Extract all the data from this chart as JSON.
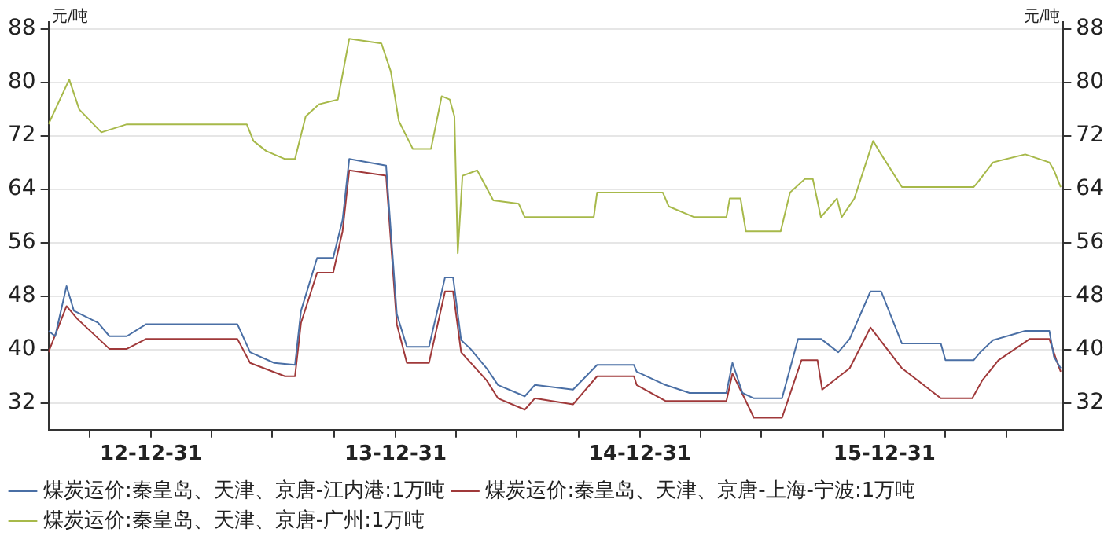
{
  "chart_data": {
    "type": "line",
    "ylabel": "元/吨",
    "y2label": "元/吨",
    "legend": "bottom",
    "grid": "y",
    "marker": "none",
    "line_style": "solid",
    "xlim": [
      "2012-07-31",
      "2016-09-23"
    ],
    "xticks": [
      {
        "value": "2012-09-30",
        "label": null
      },
      {
        "value": "2012-12-31",
        "label": "12-12-31"
      },
      {
        "value": "2013-03-31",
        "label": null
      },
      {
        "value": "2013-06-30",
        "label": null
      },
      {
        "value": "2013-09-30",
        "label": null
      },
      {
        "value": "2013-12-31",
        "label": "13-12-31"
      },
      {
        "value": "2014-03-31",
        "label": null
      },
      {
        "value": "2014-06-30",
        "label": null
      },
      {
        "value": "2014-09-30",
        "label": null
      },
      {
        "value": "2014-12-31",
        "label": "14-12-31"
      },
      {
        "value": "2015-03-31",
        "label": null
      },
      {
        "value": "2015-06-30",
        "label": null
      },
      {
        "value": "2015-09-30",
        "label": null
      },
      {
        "value": "2015-12-31",
        "label": "15-12-31"
      },
      {
        "value": "2016-03-31",
        "label": null
      },
      {
        "value": "2016-06-30",
        "label": null
      }
    ],
    "ylim": [
      28,
      89
    ],
    "yticks": [
      32,
      40,
      48,
      56,
      64,
      72,
      80,
      88
    ],
    "y2lim": [
      28,
      89
    ],
    "y2ticks": [
      32,
      40,
      48,
      56,
      64,
      72,
      80,
      88
    ],
    "series": [
      {
        "name": "煤炭运价:秦皇岛、天津、京唐-江内港:1万吨",
        "color": "#4a6fa5",
        "x": [
          "2012-07-31",
          "2012-08-10",
          "2012-08-27",
          "2012-09-07",
          "2012-10-13",
          "2012-10-30",
          "2012-11-25",
          "2012-12-24",
          "2013-05-09",
          "2013-05-28",
          "2013-07-03",
          "2013-08-03",
          "2013-08-12",
          "2013-09-05",
          "2013-09-29",
          "2013-10-13",
          "2013-10-23",
          "2013-12-17",
          "2014-01-02",
          "2014-01-17",
          "2014-02-19",
          "2014-03-15",
          "2014-03-27",
          "2014-04-08",
          "2014-04-22",
          "2014-05-16",
          "2014-06-02",
          "2014-07-12",
          "2014-07-27",
          "2014-09-22",
          "2014-10-28",
          "2014-12-22",
          "2014-12-26",
          "2015-02-07",
          "2015-03-15",
          "2015-05-09",
          "2015-05-18",
          "2015-06-02",
          "2015-06-19",
          "2015-07-31",
          "2015-08-24",
          "2015-09-27",
          "2015-10-23",
          "2015-11-09",
          "2015-12-10",
          "2015-12-26",
          "2016-01-26",
          "2016-03-24",
          "2016-03-31",
          "2016-05-12",
          "2016-05-22",
          "2016-06-10",
          "2016-07-28",
          "2016-09-02",
          "2016-09-09",
          "2016-09-19"
        ],
        "values": [
          42.8,
          42,
          49.5,
          45.8,
          44,
          42,
          42,
          43.8,
          43.8,
          39.6,
          38,
          37.7,
          45.8,
          53.7,
          53.7,
          59.4,
          68.5,
          67.5,
          45.3,
          40.4,
          40.4,
          50.8,
          50.8,
          41.4,
          40.1,
          37.2,
          34.7,
          33,
          34.7,
          34,
          37.7,
          37.7,
          36.7,
          34.7,
          33.5,
          33.5,
          38,
          33.5,
          32.7,
          32.7,
          41.6,
          41.6,
          39.6,
          41.6,
          48.7,
          48.7,
          40.9,
          40.9,
          38.4,
          38.4,
          39.6,
          41.4,
          42.8,
          42.8,
          38.9,
          37.2
        ]
      },
      {
        "name": "煤炭运价:秦皇岛、天津、京唐-上海-宁波:1万吨",
        "color": "#a0393a",
        "x": [
          "2012-07-31",
          "2012-08-27",
          "2012-09-12",
          "2012-10-30",
          "2012-11-25",
          "2012-12-24",
          "2013-05-09",
          "2013-05-28",
          "2013-07-19",
          "2013-08-03",
          "2013-08-12",
          "2013-09-05",
          "2013-09-29",
          "2013-10-13",
          "2013-10-23",
          "2013-12-17",
          "2014-01-02",
          "2014-01-17",
          "2014-02-19",
          "2014-03-15",
          "2014-03-27",
          "2014-04-08",
          "2014-05-16",
          "2014-06-02",
          "2014-07-12",
          "2014-07-27",
          "2014-09-22",
          "2014-10-28",
          "2014-12-22",
          "2014-12-26",
          "2015-02-07",
          "2015-05-09",
          "2015-05-18",
          "2015-06-07",
          "2015-06-19",
          "2015-07-31",
          "2015-08-29",
          "2015-09-22",
          "2015-09-29",
          "2015-11-09",
          "2015-12-10",
          "2016-01-26",
          "2016-03-24",
          "2016-05-10",
          "2016-05-25",
          "2016-06-18",
          "2016-08-04",
          "2016-09-02",
          "2016-09-14",
          "2016-09-19"
        ],
        "values": [
          39.6,
          46.5,
          44.6,
          40.1,
          40.1,
          41.6,
          41.6,
          38,
          36,
          36,
          44,
          51.5,
          51.5,
          57.7,
          66.8,
          66,
          43.8,
          38,
          38,
          48.7,
          48.7,
          39.6,
          35.4,
          32.7,
          31,
          32.7,
          31.8,
          36,
          36,
          34.7,
          32.3,
          32.3,
          36.4,
          32.3,
          29.8,
          29.8,
          38.4,
          38.4,
          34,
          37.2,
          43.3,
          37.2,
          32.7,
          32.7,
          35.4,
          38.4,
          41.6,
          41.6,
          38,
          36.7
        ]
      },
      {
        "name": "煤炭运价:秦皇岛、天津、京唐-广州:1万吨",
        "color": "#a7b94a",
        "x": [
          "2012-07-31",
          "2012-08-31",
          "2012-09-15",
          "2012-10-18",
          "2012-11-25",
          "2013-05-23",
          "2013-06-02",
          "2013-06-21",
          "2013-07-19",
          "2013-08-03",
          "2013-08-19",
          "2013-09-08",
          "2013-10-06",
          "2013-10-23",
          "2013-12-10",
          "2013-12-24",
          "2014-01-05",
          "2014-01-26",
          "2014-02-22",
          "2014-03-10",
          "2014-03-22",
          "2014-03-29",
          "2014-04-03",
          "2014-04-10",
          "2014-05-02",
          "2014-05-26",
          "2014-07-03",
          "2014-07-12",
          "2014-10-23",
          "2014-10-28",
          "2015-02-03",
          "2015-02-12",
          "2015-03-22",
          "2015-05-09",
          "2015-05-14",
          "2015-05-30",
          "2015-06-07",
          "2015-07-29",
          "2015-08-12",
          "2015-09-03",
          "2015-09-15",
          "2015-09-27",
          "2015-10-21",
          "2015-10-28",
          "2015-11-16",
          "2015-12-14",
          "2015-12-26",
          "2016-01-26",
          "2016-05-12",
          "2016-05-18",
          "2016-06-10",
          "2016-07-28",
          "2016-09-02",
          "2016-09-09",
          "2016-09-19"
        ],
        "values": [
          73.7,
          80.4,
          75.9,
          72.5,
          73.7,
          73.7,
          71.2,
          69.7,
          68.5,
          68.5,
          74.9,
          76.7,
          77.4,
          86.5,
          85.8,
          81.6,
          74.2,
          70,
          70,
          77.9,
          77.4,
          74.9,
          54.4,
          66,
          66.8,
          62.3,
          61.8,
          59.8,
          59.8,
          63.5,
          63.5,
          61.4,
          59.8,
          59.8,
          62.6,
          62.6,
          57.7,
          57.7,
          63.5,
          65.5,
          65.5,
          59.8,
          62.6,
          59.8,
          62.6,
          71.2,
          69.2,
          64.3,
          64.3,
          65,
          68,
          69.2,
          68,
          66.8,
          64.3
        ]
      }
    ]
  }
}
